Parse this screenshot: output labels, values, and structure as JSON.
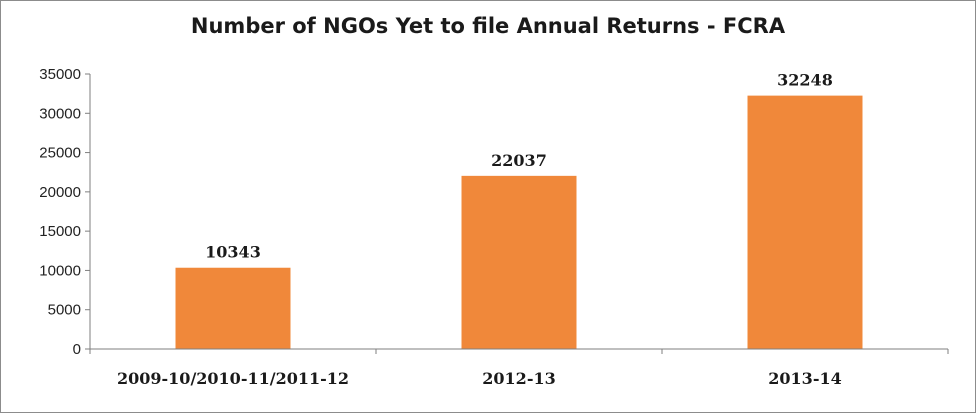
{
  "chart_data": {
    "type": "bar",
    "title": "Number of NGOs Yet to file Annual Returns - FCRA",
    "xlabel": "",
    "ylabel": "",
    "categories": [
      "2009-10/2010-11/2011-12",
      "2012-13",
      "2013-14"
    ],
    "values": [
      10343,
      22037,
      32248
    ],
    "ylim": [
      0,
      35000
    ],
    "yticks": [
      0,
      5000,
      10000,
      15000,
      20000,
      25000,
      30000,
      35000
    ],
    "bar_color": "#f0883a",
    "grid": false,
    "legend": "none",
    "data_labels": true
  }
}
